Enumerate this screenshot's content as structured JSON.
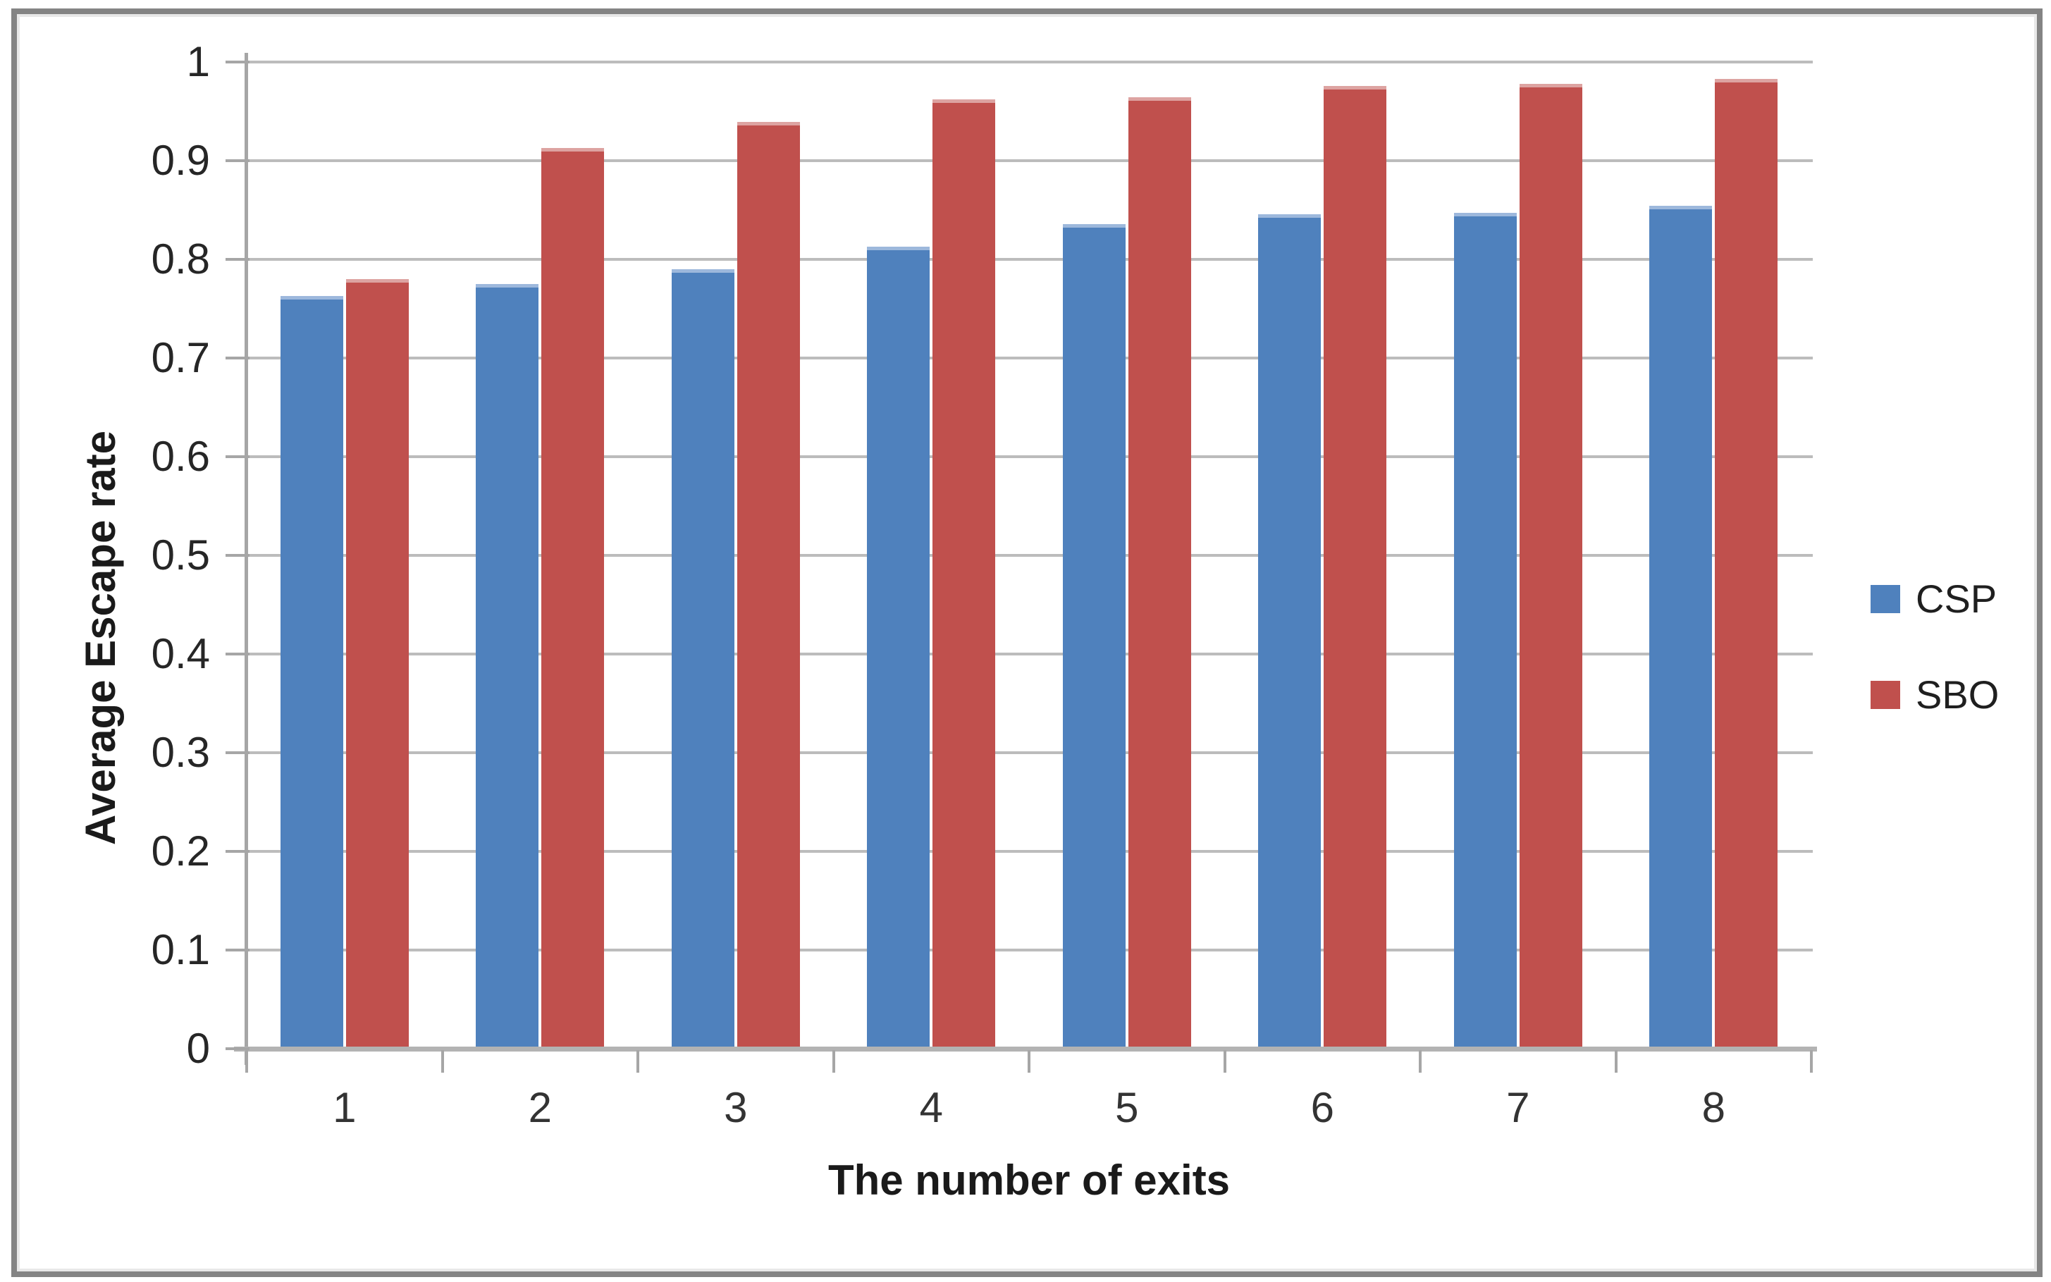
{
  "figure": {
    "background": "#ffffff",
    "border_color": "#848484"
  },
  "chart_data": {
    "type": "bar",
    "title": "",
    "categories": [
      "1",
      "2",
      "3",
      "4",
      "5",
      "6",
      "7",
      "8"
    ],
    "series": [
      {
        "name": "CSP",
        "color": "#4f81bd",
        "cap_color": "#9db8dc",
        "values": [
          0.763,
          0.775,
          0.79,
          0.813,
          0.836,
          0.846,
          0.847,
          0.854
        ]
      },
      {
        "name": "SBO",
        "color": "#c0504d",
        "cap_color": "#dda3a1",
        "values": [
          0.78,
          0.913,
          0.939,
          0.962,
          0.964,
          0.976,
          0.978,
          0.983
        ]
      }
    ],
    "xlabel": "The number of exits",
    "ylabel": "Average Escape rate",
    "ylim": [
      0,
      1
    ],
    "yticks": [
      "0",
      "0.1",
      "0.2",
      "0.3",
      "0.4",
      "0.5",
      "0.6",
      "0.7",
      "0.8",
      "0.9",
      "1"
    ],
    "grid": true,
    "legend_position": "right-outside",
    "gridline_color": "#bcbcbc",
    "axis_color": "#a6a6a6"
  }
}
